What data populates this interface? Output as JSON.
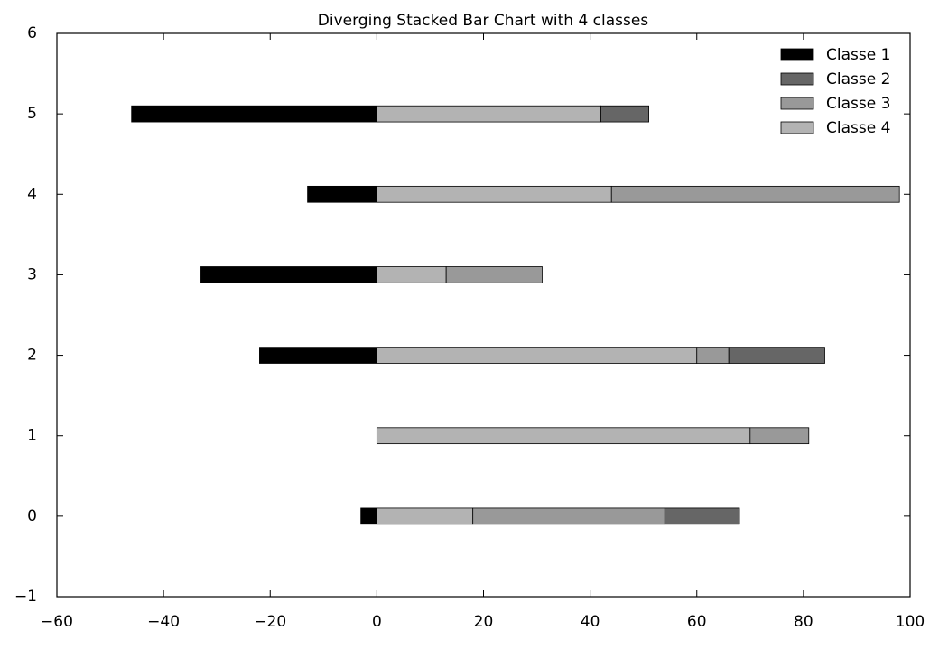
{
  "chart_data": {
    "type": "diverging_stacked_barh",
    "title": "Diverging Stacked Bar Chart with 4 classes",
    "y": [
      0,
      1,
      2,
      3,
      4,
      5
    ],
    "series": [
      {
        "name": "Classe 1",
        "color": "#000000",
        "values": [
          -3,
          0,
          -22,
          -33,
          -13,
          -46
        ]
      },
      {
        "name": "Classe 2",
        "color": "#666666",
        "values": [
          14,
          0,
          18,
          0,
          0,
          9
        ]
      },
      {
        "name": "Classe 3",
        "color": "#999999",
        "values": [
          36,
          11,
          6,
          18,
          54,
          0
        ]
      },
      {
        "name": "Classe 4",
        "color": "#b3b3b3",
        "values": [
          18,
          70,
          60,
          13,
          44,
          42
        ]
      }
    ],
    "xlim": [
      -60,
      100
    ],
    "xticks": [
      {
        "value": -60,
        "label": "−60"
      },
      {
        "value": -40,
        "label": "−40"
      },
      {
        "value": -20,
        "label": "−20"
      },
      0,
      20,
      40,
      60,
      80,
      100
    ],
    "ylim": [
      -1,
      6
    ],
    "yticks": [
      {
        "value": -1,
        "label": "−1"
      },
      0,
      1,
      2,
      3,
      4,
      5,
      6
    ],
    "legend": "upper right"
  }
}
